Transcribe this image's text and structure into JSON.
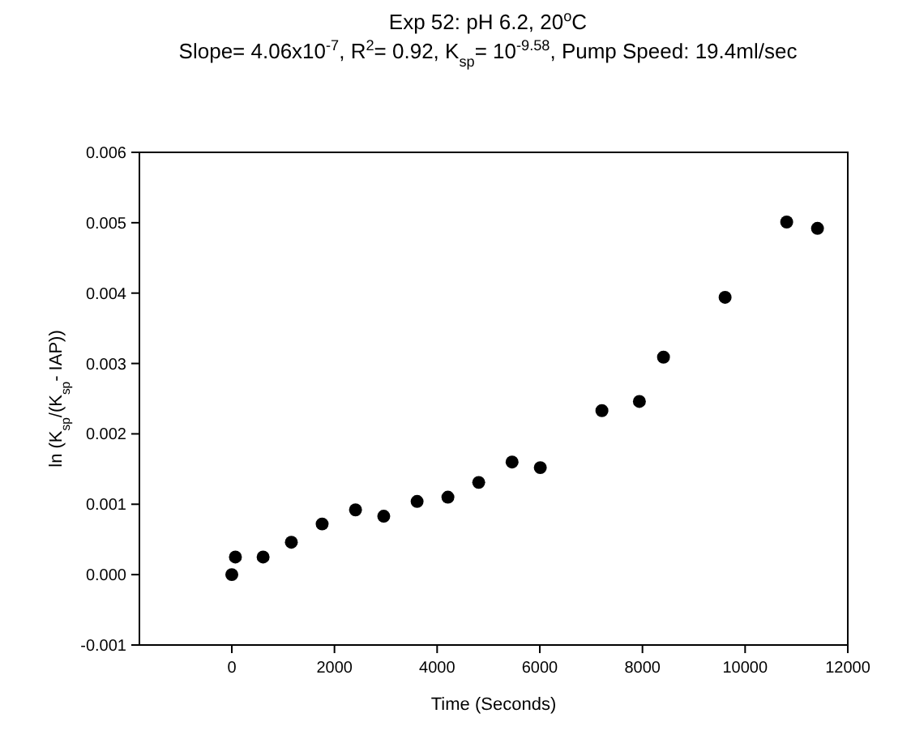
{
  "chart_data": {
    "type": "scatter",
    "title": "Exp 52: pH 6.2, 20$^{o}$C",
    "subtitle": "Slope= 4.06x10$^{-7}$, R$^{2}$= 0.92, K$_{sp}$= 10$^{-9.58}$, Pump Speed: 19.4ml/sec",
    "xlabel": "Time (Seconds)",
    "ylabel": "ln (K$_{sp}$/(K$_{sp}$- IAP))",
    "x": [
      0,
      70,
      610,
      1160,
      1760,
      2410,
      2960,
      3610,
      4210,
      4810,
      5460,
      6010,
      7210,
      7940,
      8410,
      9610,
      10810,
      11410
    ],
    "series": [
      {
        "color": "#000000",
        "values": [
          0.0,
          0.00025,
          0.00025,
          0.00046,
          0.00072,
          0.00092,
          0.00083,
          0.00104,
          0.0011,
          0.00131,
          0.0016,
          0.00152,
          0.00233,
          0.00246,
          0.00309,
          0.00394,
          0.00501,
          0.00492
        ]
      }
    ],
    "xlim": [
      -1800,
      12000
    ],
    "xticks": [
      0,
      2000,
      4000,
      6000,
      8000,
      10000,
      12000
    ],
    "ylim": [
      -0.001,
      0.006
    ],
    "yticks": [
      {
        "value": -0.001,
        "label": "-0.001"
      },
      {
        "value": 0,
        "label": "0.000"
      },
      {
        "value": 0.001,
        "label": "0.001"
      },
      {
        "value": 0.002,
        "label": "0.002"
      },
      {
        "value": 0.003,
        "label": "0.003"
      },
      {
        "value": 0.004,
        "label": "0.004"
      },
      {
        "value": 0.005,
        "label": "0.005"
      },
      {
        "value": 0.006,
        "label": "0.006"
      }
    ],
    "marker": "circle",
    "grid": false
  }
}
